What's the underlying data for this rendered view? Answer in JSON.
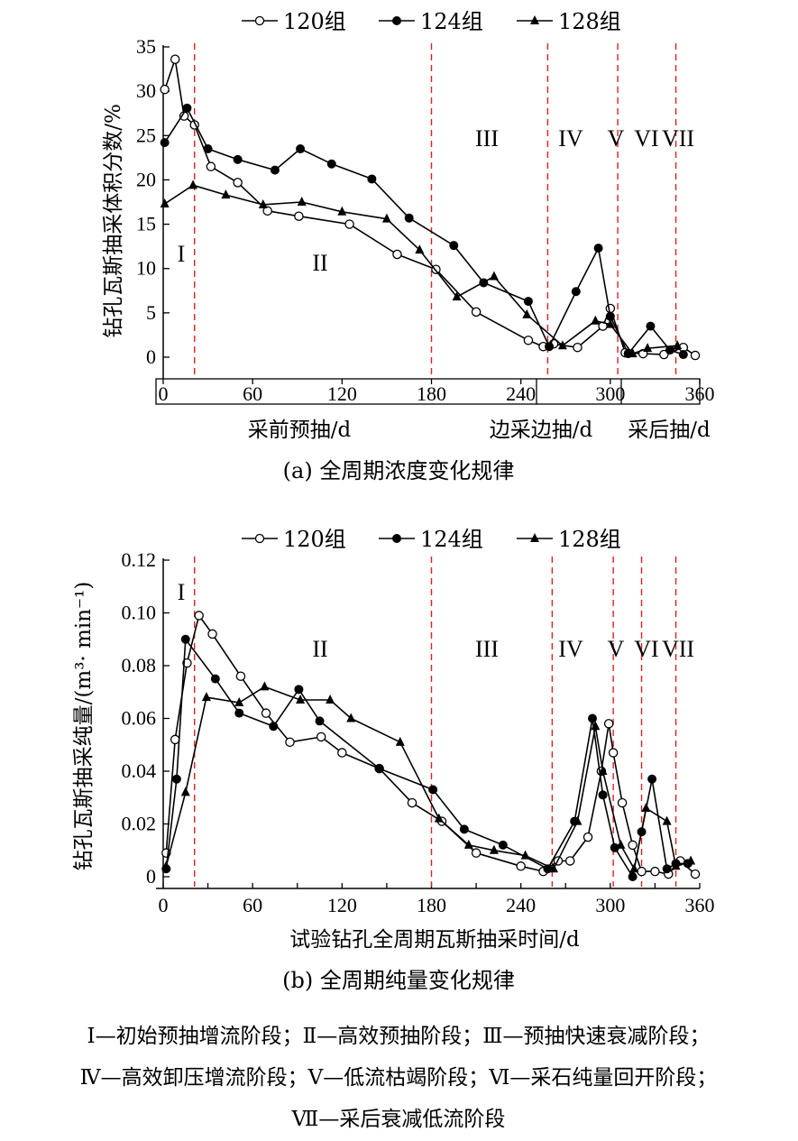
{
  "legend": {
    "g120": "120组",
    "g124": "124组",
    "g128": "128组"
  },
  "chart_data": [
    {
      "type": "line",
      "caption": "(a)  全周期浓度变化规律",
      "ylabel": "钻孔瓦斯抽采体积分数/%",
      "xlim": [
        0,
        360
      ],
      "ylim": [
        0,
        35
      ],
      "x_ticks": [
        "0",
        "60",
        "120",
        "180",
        "240",
        "300",
        "360"
      ],
      "y_ticks": [
        "0",
        "5",
        "10",
        "15",
        "20",
        "25",
        "30",
        "35"
      ],
      "phase_axis": [
        "采前预抽/d",
        "边采边抽/d",
        "采后抽/d"
      ],
      "phase_lines_x": [
        21,
        180,
        258,
        305,
        344
      ],
      "stage_labels": [
        "I",
        "II",
        "III",
        "IV",
        "V",
        "VI",
        "VII"
      ],
      "series": [
        {
          "name": "120组",
          "x": [
            1,
            8,
            14,
            21,
            32,
            50,
            70,
            91,
            125,
            157,
            183,
            210,
            245,
            255,
            262,
            278,
            295,
            300,
            310,
            322,
            336,
            349,
            357
          ],
          "y": [
            30.2,
            33.6,
            27.2,
            26.2,
            21.5,
            19.7,
            16.5,
            15.9,
            15.0,
            11.6,
            9.9,
            5.1,
            1.9,
            1.2,
            1.5,
            1.1,
            3.5,
            5.5,
            0.5,
            0.4,
            0.3,
            1.1,
            0.2
          ]
        },
        {
          "name": "124组",
          "x": [
            1,
            16,
            30,
            50,
            75,
            92,
            113,
            140,
            165,
            195,
            215,
            245,
            259,
            277,
            292,
            300,
            312,
            327,
            340,
            349
          ],
          "y": [
            24.2,
            28.1,
            23.5,
            22.3,
            21.1,
            23.5,
            21.8,
            20.1,
            15.7,
            12.6,
            8.4,
            6.3,
            1.2,
            7.4,
            12.3,
            4.6,
            0.4,
            3.5,
            0.8,
            0.3
          ]
        },
        {
          "name": "128组",
          "x": [
            1,
            20,
            42,
            67,
            93,
            120,
            150,
            172,
            197,
            222,
            244,
            268,
            290,
            300,
            315,
            325,
            345
          ],
          "y": [
            17.3,
            19.4,
            18.3,
            17.2,
            17.5,
            16.4,
            15.6,
            12.1,
            6.8,
            9.1,
            4.8,
            1.3,
            4.1,
            3.7,
            0.4,
            1.0,
            1.3
          ]
        }
      ]
    },
    {
      "type": "line",
      "caption": "(b)  全周期纯量变化规律",
      "ylabel": "钻孔瓦斯抽采纯量/(m³· min⁻¹)",
      "xlabel": "试验钻孔全周期瓦斯抽采时间/d",
      "xlim": [
        0,
        360
      ],
      "ylim": [
        0,
        0.12
      ],
      "x_ticks": [
        "0",
        "30",
        "60",
        "90",
        "120",
        "150",
        "180",
        "210",
        "240",
        "270",
        "300",
        "330",
        "360"
      ],
      "y_ticks": [
        "0",
        "0.02",
        "0.04",
        "0.06",
        "0.08",
        "0.10",
        "0.12"
      ],
      "phase_lines_x": [
        21,
        180,
        261,
        302,
        321,
        344
      ],
      "stage_labels": [
        "I",
        "II",
        "III",
        "IV",
        "V",
        "VI",
        "VII"
      ],
      "series": [
        {
          "name": "120组",
          "x": [
            2,
            8,
            16,
            24,
            33,
            52,
            69,
            85,
            106,
            120,
            145,
            167,
            187,
            210,
            240,
            255,
            265,
            273,
            285,
            294,
            299,
            302,
            308,
            315,
            321,
            330,
            339,
            347,
            357
          ],
          "y": [
            0.009,
            0.052,
            0.081,
            0.099,
            0.092,
            0.076,
            0.062,
            0.051,
            0.053,
            0.047,
            0.041,
            0.028,
            0.021,
            0.009,
            0.004,
            0.002,
            0.006,
            0.006,
            0.015,
            0.04,
            0.058,
            0.047,
            0.028,
            0.012,
            0.002,
            0.002,
            0.001,
            0.006,
            0.001
          ]
        },
        {
          "name": "124组",
          "x": [
            2,
            9,
            15,
            35,
            51,
            74,
            91,
            105,
            145,
            181,
            202,
            228,
            258,
            276,
            288,
            295,
            303,
            315,
            321,
            328,
            338,
            344,
            352
          ],
          "y": [
            0.003,
            0.037,
            0.09,
            0.075,
            0.062,
            0.057,
            0.071,
            0.059,
            0.041,
            0.033,
            0.018,
            0.012,
            0.003,
            0.021,
            0.06,
            0.031,
            0.011,
            0.0,
            0.017,
            0.037,
            0.003,
            0.005,
            0.005
          ]
        },
        {
          "name": "128组",
          "x": [
            2,
            15,
            29,
            51,
            68,
            92,
            112,
            126,
            159,
            185,
            205,
            222,
            243,
            262,
            278,
            290,
            295,
            307,
            316,
            324,
            338,
            344,
            354
          ],
          "y": [
            0.004,
            0.032,
            0.068,
            0.066,
            0.072,
            0.067,
            0.067,
            0.06,
            0.051,
            0.022,
            0.012,
            0.01,
            0.008,
            0.003,
            0.021,
            0.057,
            0.04,
            0.012,
            0.003,
            0.026,
            0.021,
            0.004,
            0.006
          ]
        }
      ]
    }
  ],
  "footnote": [
    "Ⅰ—初始预抽增流阶段；Ⅱ—高效预抽阶段；Ⅲ—预抽快速衰减阶段；",
    "Ⅳ—高效卸压增流阶段；Ⅴ—低流枯竭阶段；Ⅵ—采石纯量回开阶段；",
    "Ⅶ—采后衰减低流阶段"
  ]
}
